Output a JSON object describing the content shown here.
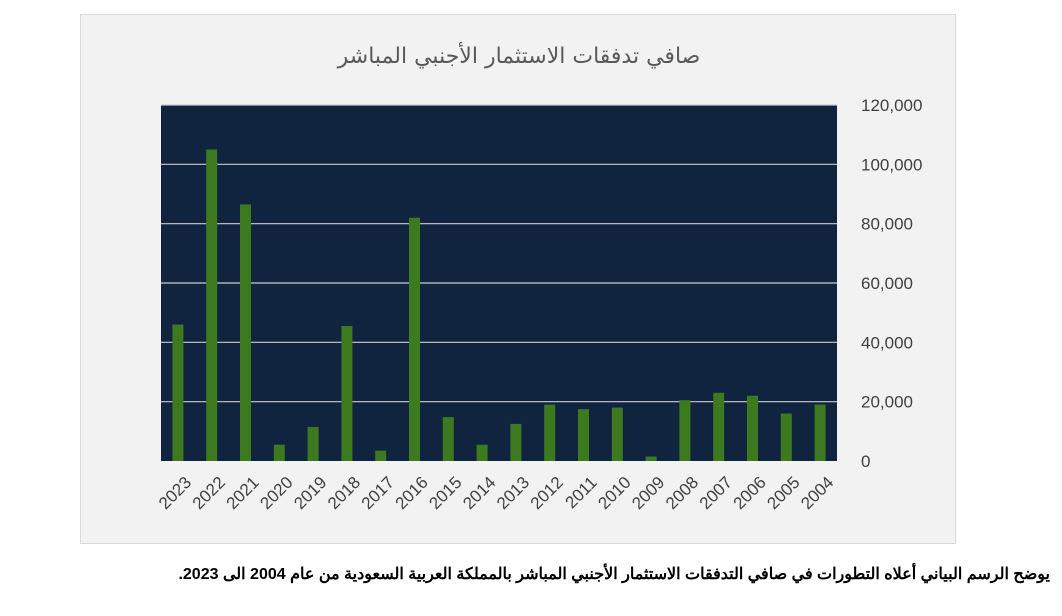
{
  "chart_data": {
    "type": "bar",
    "title": "صافي تدفقات الاستثمار الأجنبي المباشر",
    "xlabel": "",
    "ylabel": "",
    "categories": [
      "2023",
      "2022",
      "2021",
      "2020",
      "2019",
      "2018",
      "2017",
      "2016",
      "2015",
      "2014",
      "2013",
      "2012",
      "2011",
      "2010",
      "2009",
      "2008",
      "2007",
      "2006",
      "2005",
      "2004"
    ],
    "values": [
      46000,
      105000,
      86500,
      5500,
      11500,
      45500,
      3500,
      82000,
      14800,
      5500,
      12500,
      19000,
      17500,
      18000,
      1500,
      20500,
      23000,
      22000,
      16000,
      19000
    ],
    "ylim": [
      0,
      120000
    ],
    "yticks": [
      "0",
      "20,000",
      "40,000",
      "60,000",
      "80,000",
      "100,000",
      "120,000"
    ],
    "ytick_values": [
      0,
      20000,
      40000,
      60000,
      80000,
      100000,
      120000
    ],
    "y_axis_side": "right",
    "grid": true,
    "legend": "none",
    "colors": {
      "bar": "#3d7a1f",
      "plot_bg": "#10233f",
      "grid": "#c8ccd4",
      "frame_bg": "#f2f2f2"
    }
  },
  "caption": "يوضح الرسم البياني أعلاه التطورات في صافي التدفقات الاستثمار الأجنبي المباشر بالمملكة العربية السعودية من عام 2004 الى 2023."
}
